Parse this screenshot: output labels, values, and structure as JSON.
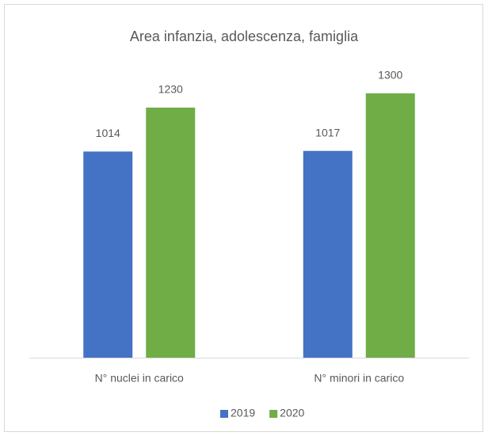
{
  "chart_data": {
    "type": "bar",
    "title": "Area infanzia, adolescenza, famiglia",
    "categories": [
      "N° nuclei in carico",
      "N° minori in carico"
    ],
    "series": [
      {
        "name": "2019",
        "color": "#4472c4",
        "values": [
          1014,
          1017
        ]
      },
      {
        "name": "2020",
        "color": "#70ad47",
        "values": [
          1230,
          1300
        ]
      }
    ],
    "legend": "bottom"
  }
}
